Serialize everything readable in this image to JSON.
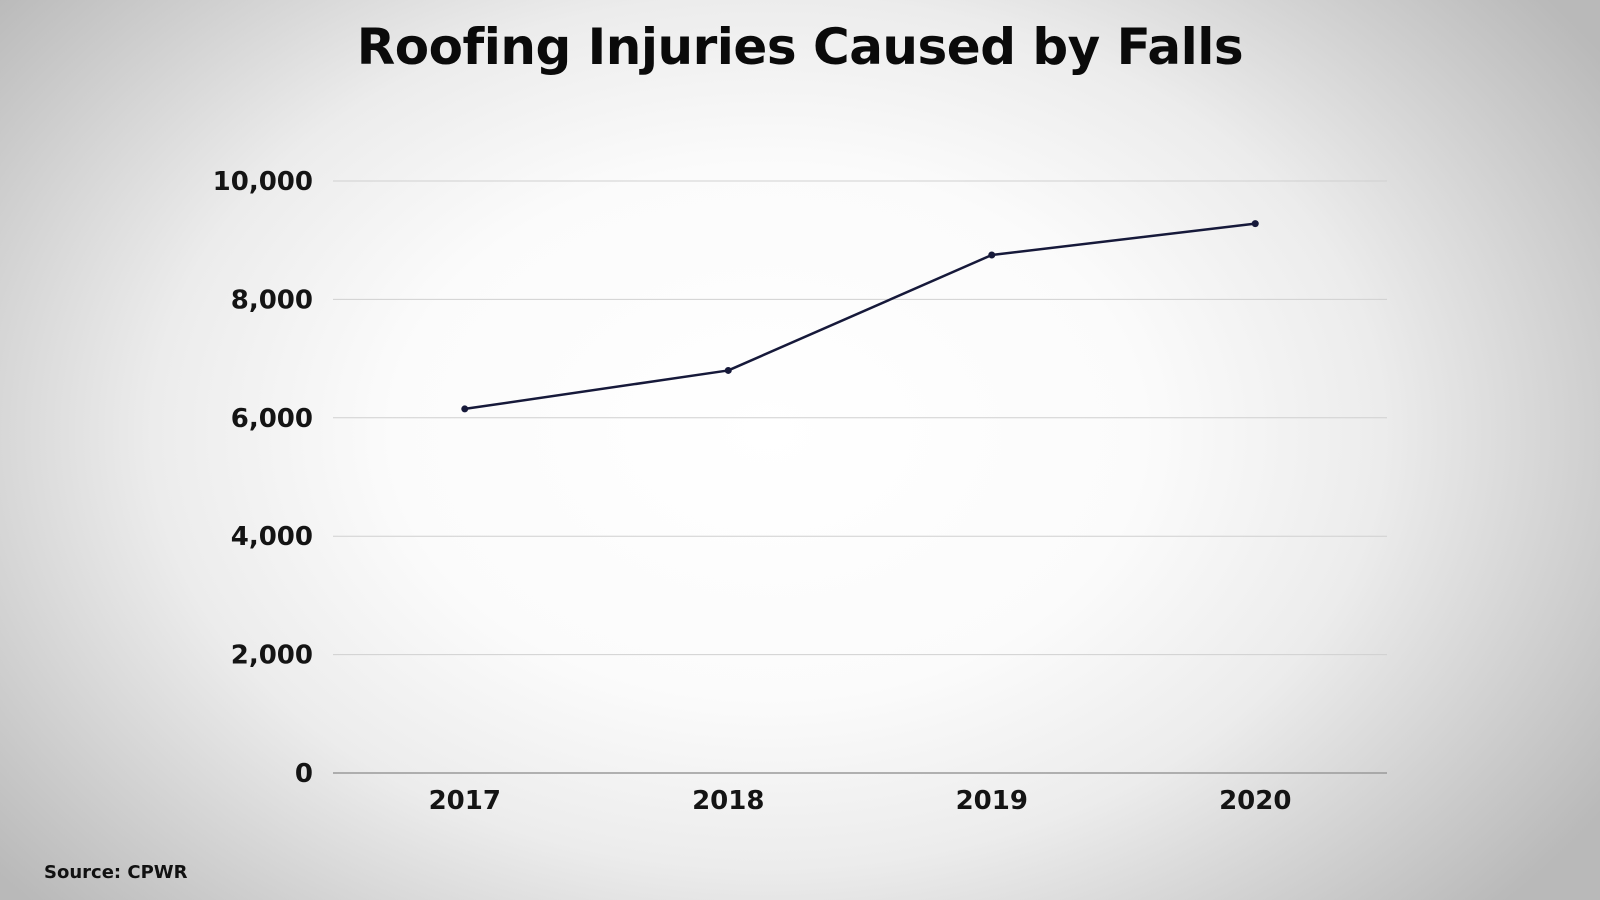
{
  "chart_data": {
    "type": "line",
    "title": "Roofing Injuries Caused by Falls",
    "source": "Source: CPWR",
    "categories": [
      "2017",
      "2018",
      "2019",
      "2020"
    ],
    "series": [
      {
        "values": [
          6150,
          6800,
          8750,
          9280
        ]
      }
    ],
    "ylim": [
      0,
      10000
    ],
    "yticks": [
      0,
      2000,
      4000,
      6000,
      8000,
      10000
    ],
    "ytick_labels": [
      "0",
      "2,000",
      "4,000",
      "6,000",
      "8,000",
      "10,000"
    ],
    "xlabel": "",
    "ylabel": "",
    "grid": true,
    "legend": "none",
    "line_color": "#16193a",
    "grid_color": "#d0d0d0"
  }
}
